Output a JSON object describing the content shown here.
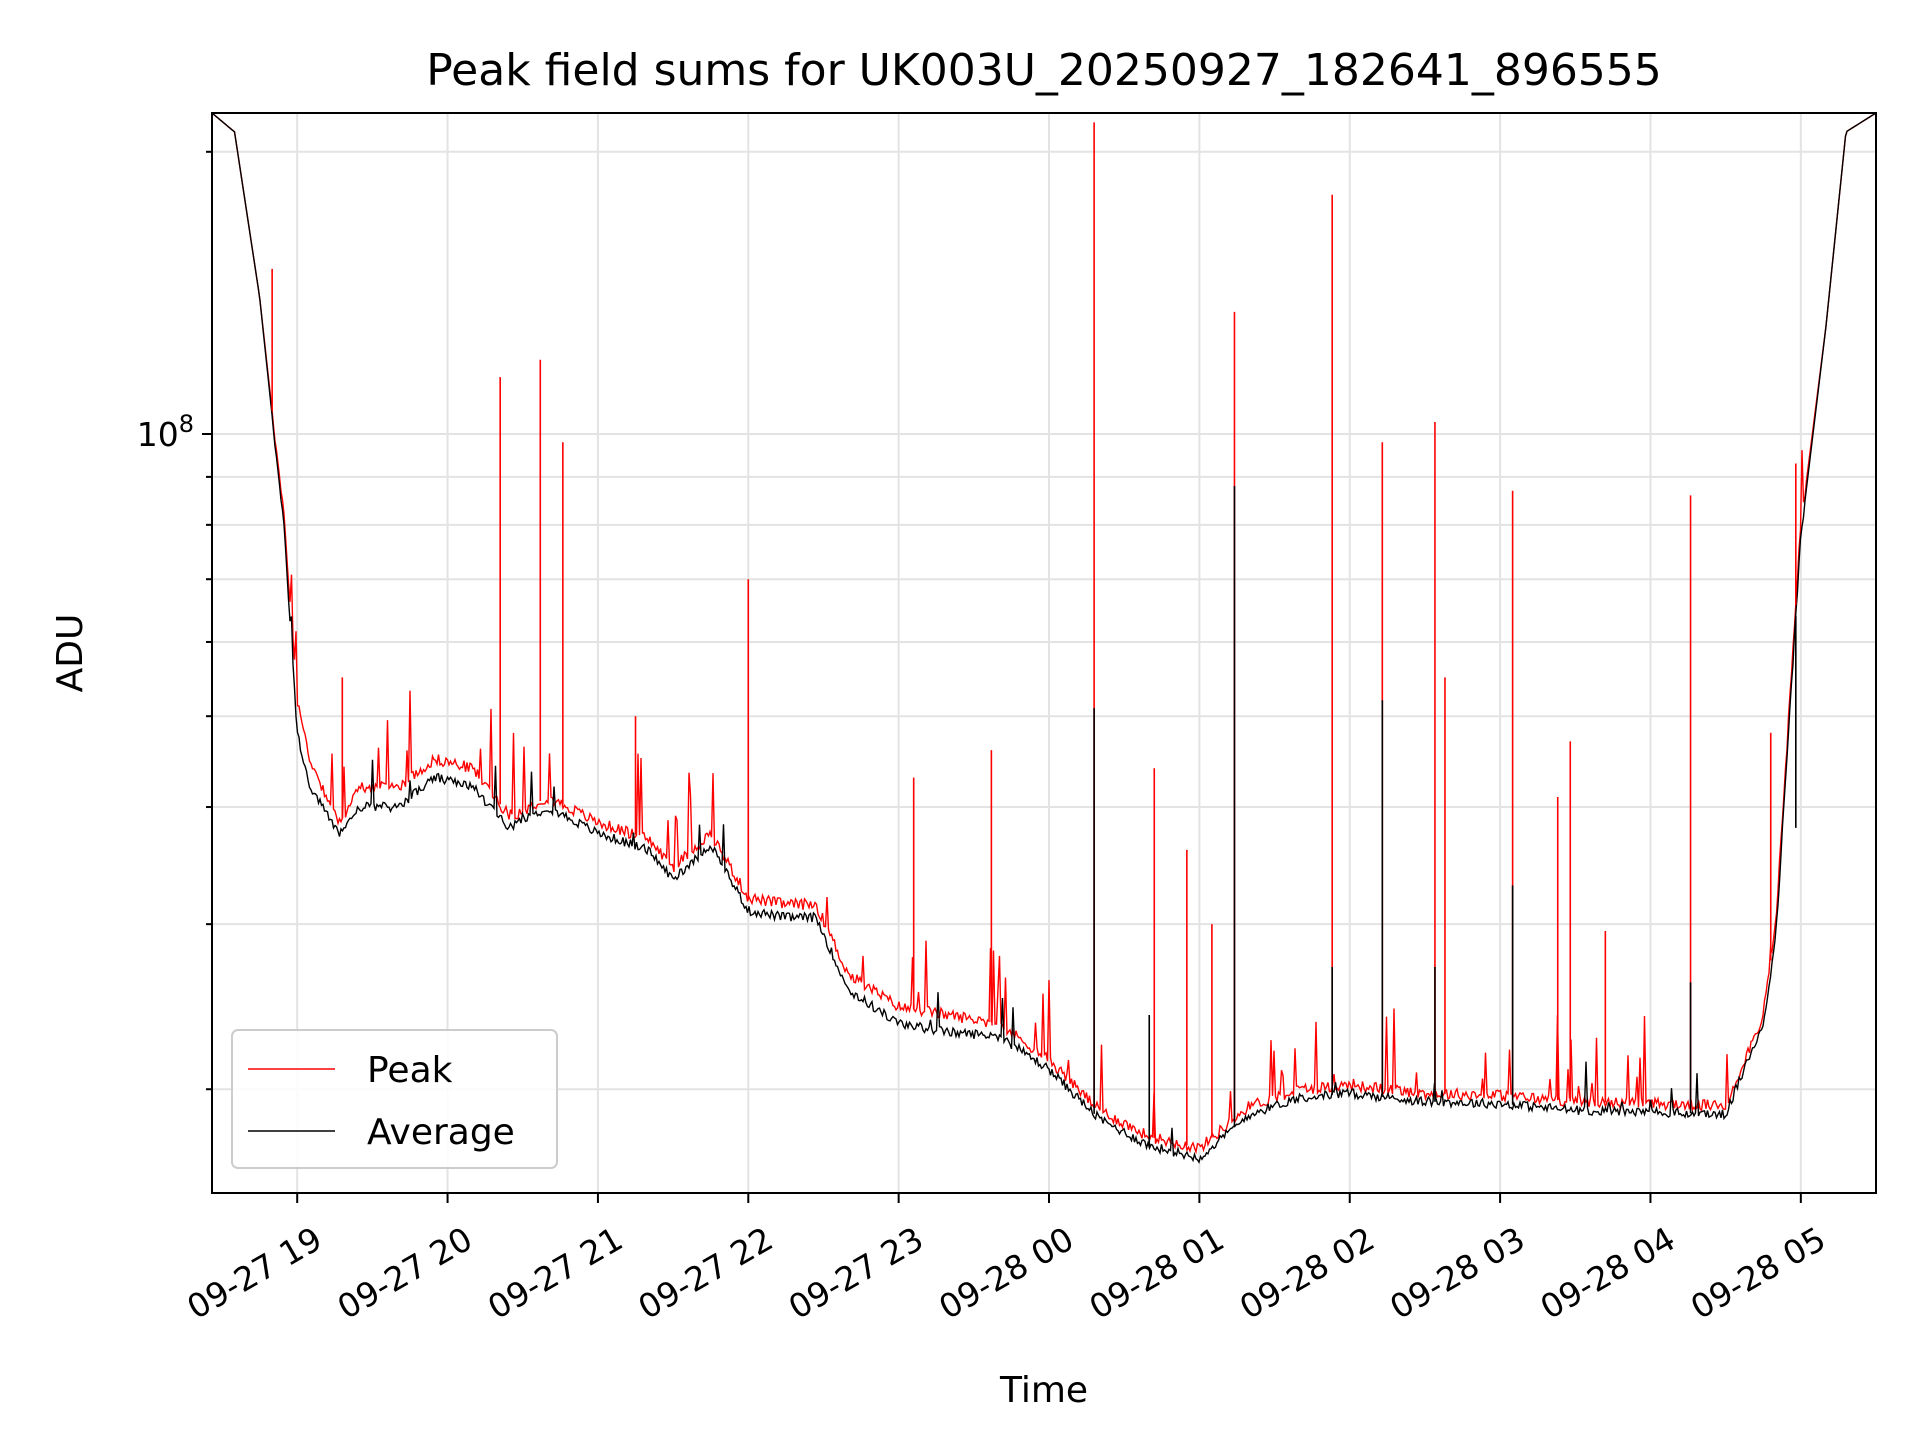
{
  "chart_data": {
    "type": "line",
    "title": "Peak field sums for UK003U_20250927_182641_896555",
    "xlabel": "Time",
    "ylabel": "ADU",
    "x_axis": "datetime",
    "xlim": [
      "2025-09-27 18:26",
      "2025-09-28 05:30"
    ],
    "ylim": [
      15500000,
      220000000
    ],
    "yscale": "log",
    "y_tick_values": [
      100000000
    ],
    "y_tick_labels": [
      "10^8"
    ],
    "x_tick_values": [
      "2025-09-27 19:00",
      "2025-09-27 20:00",
      "2025-09-27 21:00",
      "2025-09-27 22:00",
      "2025-09-27 23:00",
      "2025-09-28 00:00",
      "2025-09-28 01:00",
      "2025-09-28 02:00",
      "2025-09-28 03:00",
      "2025-09-28 04:00",
      "2025-09-28 05:00"
    ],
    "x_tick_labels": [
      "09-27 19",
      "09-27 20",
      "09-27 21",
      "09-27 22",
      "09-27 23",
      "09-28 00",
      "09-28 01",
      "09-28 02",
      "09-28 03",
      "09-28 04",
      "09-28 05"
    ],
    "grid": true,
    "legend_position": "lower left",
    "series": [
      {
        "name": "Peak",
        "color": "#ff0000",
        "points": [
          [
            "2025-09-27 18:26",
            220000000
          ],
          [
            "2025-09-27 18:35",
            210000000
          ],
          [
            "2025-09-27 18:45",
            140000000
          ],
          [
            "2025-09-27 18:55",
            80000000
          ],
          [
            "2025-09-27 19:00",
            52000000
          ],
          [
            "2025-09-27 19:05",
            45000000
          ],
          [
            "2025-09-27 19:10",
            42000000
          ],
          [
            "2025-09-27 19:17",
            38500000
          ],
          [
            "2025-09-27 19:25",
            42000000
          ],
          [
            "2025-09-27 19:40",
            42000000
          ],
          [
            "2025-09-27 19:55",
            45000000
          ],
          [
            "2025-09-27 20:10",
            44000000
          ],
          [
            "2025-09-27 20:25",
            39000000
          ],
          [
            "2025-09-27 20:40",
            41000000
          ],
          [
            "2025-09-27 21:00",
            38500000
          ],
          [
            "2025-09-27 21:20",
            37000000
          ],
          [
            "2025-09-27 21:30",
            34500000
          ],
          [
            "2025-09-27 21:45",
            37500000
          ],
          [
            "2025-09-27 22:00",
            32000000
          ],
          [
            "2025-09-27 22:15",
            31500000
          ],
          [
            "2025-09-27 22:27",
            31500000
          ],
          [
            "2025-09-27 22:40",
            26500000
          ],
          [
            "2025-09-27 23:00",
            24500000
          ],
          [
            "2025-09-27 23:20",
            24000000
          ],
          [
            "2025-09-27 23:40",
            23500000
          ],
          [
            "2025-09-28 00:00",
            21500000
          ],
          [
            "2025-09-28 00:20",
            19000000
          ],
          [
            "2025-09-28 00:40",
            17800000
          ],
          [
            "2025-09-28 01:00",
            17300000
          ],
          [
            "2025-09-28 01:20",
            19200000
          ],
          [
            "2025-09-28 01:40",
            20000000
          ],
          [
            "2025-09-28 02:00",
            20200000
          ],
          [
            "2025-09-28 02:30",
            19800000
          ],
          [
            "2025-09-28 03:00",
            19700000
          ],
          [
            "2025-09-28 03:30",
            19400000
          ],
          [
            "2025-09-28 04:00",
            19300000
          ],
          [
            "2025-09-28 04:30",
            19200000
          ],
          [
            "2025-09-28 04:45",
            24000000
          ],
          [
            "2025-09-28 04:50",
            30000000
          ],
          [
            "2025-09-28 05:00",
            80000000
          ],
          [
            "2025-09-28 05:10",
            130000000
          ],
          [
            "2025-09-28 05:18",
            210000000
          ],
          [
            "2025-09-28 05:30",
            220000000
          ]
        ],
        "spikes": [
          [
            "2025-09-27 18:50",
            150000000
          ],
          [
            "2025-09-27 19:18",
            55000000
          ],
          [
            "2025-09-27 20:21",
            115000000
          ],
          [
            "2025-09-27 20:37",
            120000000
          ],
          [
            "2025-09-27 20:46",
            98000000
          ],
          [
            "2025-09-27 21:15",
            50000000
          ],
          [
            "2025-09-27 22:00",
            70000000
          ],
          [
            "2025-09-27 23:06",
            43000000
          ],
          [
            "2025-09-27 23:37",
            46000000
          ],
          [
            "2025-09-28 00:18",
            215000000
          ],
          [
            "2025-09-28 00:42",
            44000000
          ],
          [
            "2025-09-28 00:55",
            36000000
          ],
          [
            "2025-09-28 01:05",
            30000000
          ],
          [
            "2025-09-28 01:14",
            135000000
          ],
          [
            "2025-09-28 01:53",
            180000000
          ],
          [
            "2025-09-28 02:13",
            98000000
          ],
          [
            "2025-09-28 02:34",
            103000000
          ],
          [
            "2025-09-28 02:38",
            55000000
          ],
          [
            "2025-09-28 03:05",
            87000000
          ],
          [
            "2025-09-28 03:23",
            41000000
          ],
          [
            "2025-09-28 03:28",
            47000000
          ],
          [
            "2025-09-28 03:42",
            29500000
          ],
          [
            "2025-09-28 04:16",
            86000000
          ],
          [
            "2025-09-28 04:48",
            48000000
          ],
          [
            "2025-09-28 04:58",
            93000000
          ]
        ]
      },
      {
        "name": "Average",
        "color": "#000000",
        "points": [
          [
            "2025-09-27 18:26",
            220000000
          ],
          [
            "2025-09-27 18:35",
            210000000
          ],
          [
            "2025-09-27 18:45",
            140000000
          ],
          [
            "2025-09-27 18:55",
            78000000
          ],
          [
            "2025-09-27 19:00",
            48000000
          ],
          [
            "2025-09-27 19:05",
            42000000
          ],
          [
            "2025-09-27 19:10",
            40000000
          ],
          [
            "2025-09-27 19:17",
            37500000
          ],
          [
            "2025-09-27 19:25",
            40000000
          ],
          [
            "2025-09-27 19:40",
            40000000
          ],
          [
            "2025-09-27 19:55",
            43000000
          ],
          [
            "2025-09-27 20:10",
            42000000
          ],
          [
            "2025-09-27 20:25",
            38000000
          ],
          [
            "2025-09-27 20:40",
            40000000
          ],
          [
            "2025-09-27 21:00",
            37500000
          ],
          [
            "2025-09-27 21:20",
            36000000
          ],
          [
            "2025-09-27 21:30",
            33500000
          ],
          [
            "2025-09-27 21:45",
            36500000
          ],
          [
            "2025-09-27 22:00",
            31000000
          ],
          [
            "2025-09-27 22:15",
            30500000
          ],
          [
            "2025-09-27 22:27",
            30500000
          ],
          [
            "2025-09-27 22:40",
            25500000
          ],
          [
            "2025-09-27 23:00",
            23500000
          ],
          [
            "2025-09-27 23:20",
            23000000
          ],
          [
            "2025-09-27 23:40",
            22800000
          ],
          [
            "2025-09-28 00:00",
            21000000
          ],
          [
            "2025-09-28 00:20",
            18600000
          ],
          [
            "2025-09-28 00:40",
            17400000
          ],
          [
            "2025-09-28 01:00",
            16900000
          ],
          [
            "2025-09-28 01:20",
            18800000
          ],
          [
            "2025-09-28 01:40",
            19600000
          ],
          [
            "2025-09-28 02:00",
            19800000
          ],
          [
            "2025-09-28 02:30",
            19400000
          ],
          [
            "2025-09-28 03:00",
            19300000
          ],
          [
            "2025-09-28 03:30",
            19000000
          ],
          [
            "2025-09-28 04:00",
            18900000
          ],
          [
            "2025-09-28 04:30",
            18800000
          ],
          [
            "2025-09-28 04:45",
            23500000
          ],
          [
            "2025-09-28 04:50",
            29000000
          ],
          [
            "2025-09-28 05:00",
            78000000
          ],
          [
            "2025-09-28 05:10",
            130000000
          ],
          [
            "2025-09-28 05:18",
            210000000
          ],
          [
            "2025-09-28 05:30",
            220000000
          ]
        ],
        "spikes": [
          [
            "2025-09-28 00:18",
            51000000
          ],
          [
            "2025-09-28 00:40",
            24000000
          ],
          [
            "2025-09-28 01:14",
            88000000
          ],
          [
            "2025-09-28 01:53",
            27000000
          ],
          [
            "2025-09-28 02:13",
            52000000
          ],
          [
            "2025-09-28 02:34",
            27000000
          ],
          [
            "2025-09-28 03:05",
            33000000
          ],
          [
            "2025-09-28 04:16",
            26000000
          ],
          [
            "2025-09-28 04:58",
            38000000
          ]
        ]
      }
    ]
  }
}
